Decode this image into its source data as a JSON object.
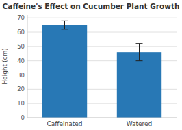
{
  "chart_data": {
    "type": "bar",
    "title": "Caffeine's Effect on Cucumber Plant Growth",
    "categories": [
      "Caffeinated",
      "Watered"
    ],
    "values": [
      65,
      46
    ],
    "errors": [
      3,
      6
    ],
    "color": "#2878b5",
    "ylabel": "Height (cm)",
    "ylim": [
      0,
      72
    ],
    "yticks": [
      0,
      10,
      20,
      30,
      40,
      50,
      60,
      70
    ],
    "grid": true
  }
}
